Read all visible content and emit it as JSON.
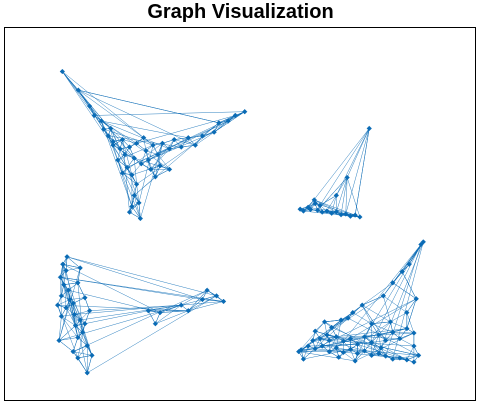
{
  "title": "Graph Visualization",
  "colors": {
    "node": "#0a6bb5",
    "edge": "#0a6bb5",
    "frame": "#000000",
    "background": "#ffffff"
  },
  "chart_data": {
    "type": "network",
    "title": "Graph Visualization",
    "xlim": [
      0,
      100
    ],
    "ylim": [
      0,
      100
    ],
    "grid": false,
    "node_marker": "diamond",
    "clusters": [
      {
        "name": "",
        "nodes": [
          [
            12.2,
            88.3
          ],
          [
            15.6,
            83.3
          ],
          [
            18.0,
            79.0
          ],
          [
            19.0,
            76.5
          ],
          [
            20.5,
            75.0
          ],
          [
            21.0,
            72.8
          ],
          [
            22.0,
            71.0
          ],
          [
            23.0,
            69.5
          ],
          [
            24.5,
            67.5
          ],
          [
            25.5,
            66.0
          ],
          [
            24.0,
            64.5
          ],
          [
            26.0,
            62.5
          ],
          [
            27.0,
            60.5
          ],
          [
            28.0,
            58.0
          ],
          [
            27.5,
            55.0
          ],
          [
            28.5,
            53.0
          ],
          [
            27.0,
            52.0
          ],
          [
            28.8,
            48.8
          ],
          [
            26.5,
            50.5
          ],
          [
            23.0,
            68.5
          ],
          [
            22.5,
            73.0
          ],
          [
            25.0,
            70.0
          ],
          [
            26.5,
            68.0
          ],
          [
            28.0,
            69.0
          ],
          [
            29.5,
            70.5
          ],
          [
            30.0,
            67.0
          ],
          [
            31.5,
            68.5
          ],
          [
            32.5,
            66.0
          ],
          [
            33.5,
            69.0
          ],
          [
            35.0,
            67.5
          ],
          [
            36.0,
            70.0
          ],
          [
            37.5,
            68.0
          ],
          [
            39.0,
            70.5
          ],
          [
            40.5,
            68.5
          ],
          [
            42.0,
            71.0
          ],
          [
            44.5,
            72.0
          ],
          [
            45.5,
            74.5
          ],
          [
            47.5,
            75.0
          ],
          [
            49.0,
            76.5
          ],
          [
            51.0,
            77.5
          ],
          [
            29.0,
            63.5
          ],
          [
            31.0,
            62.0
          ],
          [
            27.5,
            65.0
          ],
          [
            30.5,
            64.5
          ],
          [
            33.0,
            63.0
          ],
          [
            25.0,
            61.0
          ],
          [
            35.0,
            62.0
          ],
          [
            32.0,
            60.0
          ]
        ]
      },
      {
        "name": "",
        "nodes": [
          [
            77.5,
            73.0
          ],
          [
            72.8,
            59.8
          ],
          [
            70.5,
            55.0
          ],
          [
            66.0,
            52.8
          ],
          [
            65.0,
            51.2
          ],
          [
            62.8,
            51.3
          ],
          [
            63.5,
            50.8
          ],
          [
            64.5,
            51.8
          ],
          [
            66.5,
            51.0
          ],
          [
            67.5,
            50.5
          ],
          [
            68.5,
            50.8
          ],
          [
            69.5,
            50.2
          ],
          [
            70.5,
            50.6
          ],
          [
            71.5,
            49.8
          ],
          [
            72.5,
            50.0
          ],
          [
            73.5,
            49.4
          ],
          [
            74.5,
            49.7
          ],
          [
            75.5,
            49.2
          ],
          [
            67.0,
            52.3
          ],
          [
            65.8,
            53.8
          ]
        ]
      },
      {
        "name": "",
        "nodes": [
          [
            13.2,
            38.5
          ],
          [
            12.3,
            36.5
          ],
          [
            13.0,
            34.8
          ],
          [
            11.8,
            33.0
          ],
          [
            12.5,
            31.0
          ],
          [
            13.5,
            29.5
          ],
          [
            12.0,
            28.0
          ],
          [
            13.8,
            27.0
          ],
          [
            14.5,
            26.0
          ],
          [
            13.0,
            24.8
          ],
          [
            14.8,
            23.0
          ],
          [
            16.0,
            21.5
          ],
          [
            15.0,
            20.0
          ],
          [
            16.5,
            18.2
          ],
          [
            15.5,
            16.8
          ],
          [
            17.5,
            14.6
          ],
          [
            14.5,
            13.0
          ],
          [
            15.5,
            11.3
          ],
          [
            17.5,
            7.3
          ],
          [
            11.5,
            16.0
          ],
          [
            12.0,
            22.5
          ],
          [
            11.2,
            25.5
          ],
          [
            16.0,
            35.5
          ],
          [
            15.5,
            31.5
          ],
          [
            17.0,
            27.5
          ],
          [
            18.0,
            24.0
          ],
          [
            17.0,
            20.5
          ],
          [
            18.5,
            12.0
          ],
          [
            30.5,
            24.0
          ],
          [
            32.0,
            20.5
          ],
          [
            33.0,
            23.5
          ],
          [
            37.5,
            25.5
          ],
          [
            39.0,
            24.0
          ],
          [
            42.0,
            27.0
          ],
          [
            45.0,
            28.0
          ],
          [
            46.5,
            26.5
          ],
          [
            43.0,
            29.5
          ]
        ]
      },
      {
        "name": "",
        "nodes": [
          [
            89.0,
            42.5
          ],
          [
            88.5,
            41.8
          ],
          [
            86.0,
            36.5
          ],
          [
            84.5,
            34.5
          ],
          [
            82.5,
            31.5
          ],
          [
            87.5,
            27.2
          ],
          [
            80.5,
            28.0
          ],
          [
            76.0,
            25.5
          ],
          [
            74.0,
            23.5
          ],
          [
            73.0,
            22.0
          ],
          [
            71.5,
            21.5
          ],
          [
            69.5,
            19.5
          ],
          [
            68.5,
            17.5
          ],
          [
            67.0,
            16.5
          ],
          [
            65.5,
            16.0
          ],
          [
            64.5,
            14.5
          ],
          [
            63.0,
            13.5
          ],
          [
            62.5,
            13.0
          ],
          [
            88.0,
            12.0
          ],
          [
            87.0,
            10.2
          ],
          [
            85.5,
            10.8
          ],
          [
            84.0,
            11.3
          ],
          [
            82.5,
            11.0
          ],
          [
            81.0,
            11.8
          ],
          [
            79.5,
            12.5
          ],
          [
            78.0,
            12.0
          ],
          [
            76.5,
            13.2
          ],
          [
            75.0,
            12.5
          ],
          [
            73.5,
            13.6
          ],
          [
            72.0,
            12.8
          ],
          [
            70.5,
            14.0
          ],
          [
            69.0,
            13.0
          ],
          [
            67.5,
            14.5
          ],
          [
            66.0,
            13.8
          ],
          [
            87.0,
            18.0
          ],
          [
            85.5,
            19.2
          ],
          [
            84.0,
            16.5
          ],
          [
            82.5,
            18.2
          ],
          [
            81.0,
            16.0
          ],
          [
            79.5,
            17.5
          ],
          [
            78.0,
            15.5
          ],
          [
            76.5,
            17.0
          ],
          [
            75.0,
            15.0
          ],
          [
            73.5,
            16.5
          ],
          [
            72.0,
            15.8
          ],
          [
            70.5,
            17.0
          ],
          [
            69.0,
            16.0
          ],
          [
            78.0,
            20.5
          ],
          [
            82.0,
            21.0
          ],
          [
            85.5,
            23.5
          ],
          [
            87.0,
            14.5
          ],
          [
            63.5,
            11.0
          ],
          [
            66.0,
            18.5
          ],
          [
            68.0,
            21.0
          ],
          [
            80.0,
            14.0
          ],
          [
            74.5,
            10.5
          ],
          [
            71.0,
            11.5
          ]
        ]
      }
    ]
  }
}
